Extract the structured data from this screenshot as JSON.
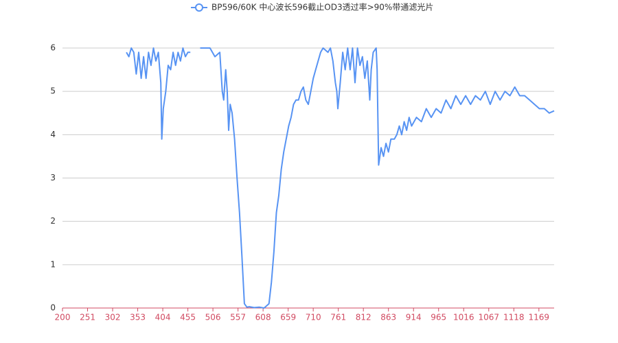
{
  "chart_data": {
    "type": "line",
    "legend": "BP596/60K 中心波长596截止OD3透过率>90%带通滤光片",
    "x": [
      330,
      335,
      340,
      345,
      350,
      355,
      360,
      365,
      370,
      375,
      380,
      385,
      390,
      395,
      400,
      402,
      405,
      410,
      415,
      420,
      425,
      430,
      435,
      440,
      445,
      450,
      455,
      460,
      470,
      480,
      490,
      500,
      510,
      520,
      525,
      528,
      532,
      535,
      538,
      541,
      545,
      550,
      555,
      560,
      565,
      570,
      575,
      580,
      590,
      600,
      610,
      620,
      625,
      630,
      635,
      640,
      645,
      650,
      655,
      660,
      665,
      670,
      675,
      680,
      685,
      690,
      695,
      700,
      705,
      710,
      715,
      720,
      725,
      730,
      740,
      745,
      750,
      755,
      758,
      760,
      765,
      770,
      775,
      780,
      785,
      790,
      795,
      800,
      805,
      810,
      815,
      820,
      825,
      828,
      832,
      838,
      840,
      843,
      848,
      853,
      858,
      863,
      868,
      875,
      880,
      885,
      890,
      895,
      900,
      905,
      910,
      920,
      930,
      940,
      950,
      960,
      970,
      980,
      990,
      1000,
      1010,
      1020,
      1030,
      1040,
      1050,
      1060,
      1070,
      1080,
      1090,
      1100,
      1110,
      1120,
      1130,
      1140,
      1150,
      1160,
      1170,
      1180,
      1190,
      1200
    ],
    "series": [
      {
        "name": "BP596/60K 中心波长596截止OD3透过率>90%带通滤光片",
        "color": "#5793f3",
        "values": [
          5.9,
          5.8,
          6,
          5.9,
          5.4,
          5.9,
          5.3,
          5.8,
          5.3,
          5.9,
          5.6,
          6,
          5.7,
          5.9,
          5.2,
          3.9,
          4.6,
          5.0,
          5.6,
          5.5,
          5.9,
          5.6,
          5.9,
          5.7,
          6,
          5.8,
          5.9,
          5.9,
          null,
          6,
          6,
          6,
          5.8,
          5.9,
          5.0,
          4.8,
          5.5,
          5.0,
          4.1,
          4.7,
          4.5,
          3.9,
          3.0,
          2.2,
          1.2,
          0.1,
          0.02,
          0.03,
          0.01,
          0.02,
          0,
          0.1,
          0.6,
          1.3,
          2.2,
          2.6,
          3.2,
          3.6,
          3.9,
          4.2,
          4.4,
          4.7,
          4.8,
          4.8,
          5.0,
          5.1,
          4.8,
          4.7,
          5.0,
          5.3,
          5.5,
          5.7,
          5.9,
          6,
          5.9,
          6,
          5.7,
          5.2,
          5.0,
          4.6,
          5.2,
          5.9,
          5.5,
          6,
          5.5,
          6,
          5.2,
          6,
          5.6,
          5.8,
          5.3,
          5.7,
          4.8,
          5.5,
          5.9,
          6,
          5.5,
          3.3,
          3.7,
          3.5,
          3.8,
          3.6,
          3.9,
          3.9,
          4.0,
          4.2,
          4.0,
          4.3,
          4.1,
          4.4,
          4.2,
          4.4,
          4.3,
          4.6,
          4.4,
          4.6,
          4.5,
          4.8,
          4.6,
          4.9,
          4.7,
          4.9,
          4.7,
          4.9,
          4.8,
          5.0,
          4.7,
          5.0,
          4.8,
          5.0,
          4.9,
          5.1,
          4.9,
          4.9,
          4.8,
          4.7,
          4.6,
          4.6,
          4.5,
          4.55
        ]
      }
    ],
    "xlim": [
      200,
      1200
    ],
    "xticks": [
      200,
      251,
      302,
      353,
      404,
      455,
      506,
      557,
      608,
      659,
      710,
      761,
      812,
      863,
      914,
      965,
      1016,
      1067,
      1118,
      1169
    ],
    "ylim": [
      0,
      6
    ],
    "yticks": [
      0,
      1,
      2,
      3,
      4,
      5,
      6
    ],
    "grid": true,
    "x_axis_color": "#d14a61"
  }
}
